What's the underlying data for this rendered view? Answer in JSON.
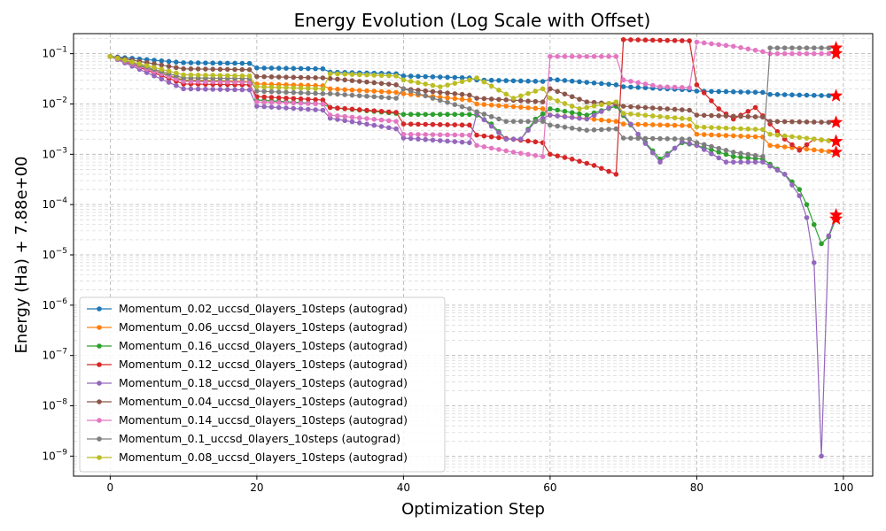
{
  "chart_data": {
    "type": "line",
    "title": "Energy Evolution (Log Scale with Offset)",
    "xlabel": "Optimization Step",
    "ylabel": "Energy (Ha) + 7.88e+00",
    "y_scale": "log",
    "xlim": [
      -5,
      104
    ],
    "ylim": [
      4e-10,
      0.25
    ],
    "grid": true,
    "legend_position": "lower-left",
    "x_ticks": [
      0,
      20,
      40,
      60,
      80,
      100
    ],
    "x_tick_labels": [
      "0",
      "20",
      "40",
      "60",
      "80",
      "100"
    ],
    "y_ticks": [
      1e-09,
      1e-08,
      1e-07,
      1e-06,
      1e-05,
      0.0001,
      0.001,
      0.01,
      0.1
    ],
    "y_tick_labels": [
      "10−9",
      "10−8",
      "10−7",
      "10−6",
      "10−5",
      "10−4",
      "10−3",
      "10−2",
      "10−1"
    ],
    "final_marker": "red-star",
    "final_marker_color": "#ff0000",
    "series": [
      {
        "name": "Momentum_0.02_uccsd_0layers_10steps (autograd)",
        "color": "#1f77b4",
        "points": [
          [
            0,
            0.088
          ],
          [
            10,
            0.066
          ],
          [
            19,
            0.064
          ],
          [
            20,
            0.052
          ],
          [
            29,
            0.05
          ],
          [
            30,
            0.043
          ],
          [
            39,
            0.04
          ],
          [
            40,
            0.036
          ],
          [
            49,
            0.033
          ],
          [
            50,
            0.03
          ],
          [
            59,
            0.028
          ],
          [
            60,
            0.031
          ],
          [
            69,
            0.024
          ],
          [
            70,
            0.022
          ],
          [
            79,
            0.019
          ],
          [
            80,
            0.018
          ],
          [
            89,
            0.017
          ],
          [
            90,
            0.0155
          ],
          [
            99,
            0.0145
          ]
        ],
        "final": 0.0145
      },
      {
        "name": "Momentum_0.06_uccsd_0layers_10steps (autograd)",
        "color": "#ff7f0e",
        "points": [
          [
            0,
            0.088
          ],
          [
            10,
            0.03
          ],
          [
            19,
            0.028
          ],
          [
            20,
            0.025
          ],
          [
            29,
            0.023
          ],
          [
            30,
            0.02
          ],
          [
            39,
            0.017
          ],
          [
            40,
            0.016
          ],
          [
            49,
            0.012
          ],
          [
            50,
            0.01
          ],
          [
            59,
            0.008
          ],
          [
            60,
            0.006
          ],
          [
            69,
            0.0045
          ],
          [
            70,
            0.004
          ],
          [
            79,
            0.0037
          ],
          [
            80,
            0.0025
          ],
          [
            89,
            0.0022
          ],
          [
            90,
            0.0015
          ],
          [
            99,
            0.0011
          ]
        ],
        "final": 0.0011
      },
      {
        "name": "Momentum_0.16_uccsd_0layers_10steps (autograd)",
        "color": "#2ca02c",
        "points": [
          [
            0,
            0.088
          ],
          [
            10,
            0.029
          ],
          [
            19,
            0.027
          ],
          [
            20,
            0.012
          ],
          [
            29,
            0.01
          ],
          [
            30,
            0.0085
          ],
          [
            39,
            0.0065
          ],
          [
            40,
            0.0062
          ],
          [
            49,
            0.0062
          ],
          [
            50,
            0.006
          ],
          [
            52,
            0.004
          ],
          [
            54,
            0.002
          ],
          [
            56,
            0.002
          ],
          [
            58,
            0.005
          ],
          [
            60,
            0.008
          ],
          [
            65,
            0.006
          ],
          [
            69,
            0.009
          ],
          [
            72,
            0.0025
          ],
          [
            75,
            0.0008
          ],
          [
            78,
            0.0017
          ],
          [
            80,
            0.0015
          ],
          [
            85,
            0.0009
          ],
          [
            89,
            0.0008
          ],
          [
            92,
            0.0004
          ],
          [
            94,
            0.0002
          ],
          [
            95,
            0.0001
          ],
          [
            96,
            4e-05
          ],
          [
            97,
            1.67e-05
          ],
          [
            98,
            2.3e-05
          ],
          [
            99,
            5.2e-05
          ]
        ],
        "final": 5.2e-05
      },
      {
        "name": "Momentum_0.12_uccsd_0layers_10steps (autograd)",
        "color": "#d62728",
        "points": [
          [
            0,
            0.088
          ],
          [
            10,
            0.025
          ],
          [
            19,
            0.024
          ],
          [
            20,
            0.014
          ],
          [
            29,
            0.012
          ],
          [
            30,
            0.0085
          ],
          [
            39,
            0.0068
          ],
          [
            40,
            0.004
          ],
          [
            49,
            0.0038
          ],
          [
            50,
            0.0024
          ],
          [
            59,
            0.0017
          ],
          [
            60,
            0.001
          ],
          [
            63,
            0.0008
          ],
          [
            66,
            0.0006
          ],
          [
            69,
            0.0004
          ],
          [
            70,
            0.19
          ],
          [
            79,
            0.18
          ],
          [
            80,
            0.024
          ],
          [
            83,
            0.008
          ],
          [
            85,
            0.005
          ],
          [
            88,
            0.0085
          ],
          [
            90,
            0.004
          ],
          [
            92,
            0.002
          ],
          [
            94,
            0.0012
          ],
          [
            96,
            0.002
          ],
          [
            99,
            0.0018
          ]
        ],
        "final": 0.0018
      },
      {
        "name": "Momentum_0.18_uccsd_0layers_10steps (autograd)",
        "color": "#9467bd",
        "points": [
          [
            0,
            0.088
          ],
          [
            10,
            0.02
          ],
          [
            19,
            0.019
          ],
          [
            20,
            0.009
          ],
          [
            29,
            0.0075
          ],
          [
            30,
            0.0052
          ],
          [
            39,
            0.0032
          ],
          [
            40,
            0.0021
          ],
          [
            49,
            0.0017
          ],
          [
            50,
            0.0065
          ],
          [
            54,
            0.002
          ],
          [
            56,
            0.002
          ],
          [
            58,
            0.0045
          ],
          [
            60,
            0.006
          ],
          [
            65,
            0.005
          ],
          [
            69,
            0.01
          ],
          [
            72,
            0.0025
          ],
          [
            75,
            0.0007
          ],
          [
            78,
            0.0018
          ],
          [
            80,
            0.0015
          ],
          [
            84,
            0.0007
          ],
          [
            89,
            0.0007
          ],
          [
            92,
            0.0004
          ],
          [
            94,
            0.00015
          ],
          [
            95,
            5.5e-05
          ],
          [
            96,
            7e-06
          ],
          [
            97,
            1e-09
          ],
          [
            98,
            2.4e-05
          ],
          [
            99,
            6.2e-05
          ]
        ],
        "final": 6.2e-05
      },
      {
        "name": "Momentum_0.04_uccsd_0layers_10steps (autograd)",
        "color": "#8c564b",
        "points": [
          [
            0,
            0.088
          ],
          [
            10,
            0.05
          ],
          [
            19,
            0.048
          ],
          [
            20,
            0.035
          ],
          [
            29,
            0.033
          ],
          [
            30,
            0.032
          ],
          [
            39,
            0.024
          ],
          [
            40,
            0.02
          ],
          [
            49,
            0.015
          ],
          [
            50,
            0.013
          ],
          [
            59,
            0.011
          ],
          [
            60,
            0.02
          ],
          [
            65,
            0.011
          ],
          [
            69,
            0.01
          ],
          [
            70,
            0.009
          ],
          [
            79,
            0.0075
          ],
          [
            80,
            0.006
          ],
          [
            89,
            0.0055
          ],
          [
            90,
            0.0045
          ],
          [
            99,
            0.0043
          ]
        ],
        "final": 0.0043
      },
      {
        "name": "Momentum_0.14_uccsd_0layers_10steps (autograd)",
        "color": "#e377c2",
        "points": [
          [
            0,
            0.088
          ],
          [
            10,
            0.028
          ],
          [
            19,
            0.027
          ],
          [
            20,
            0.011
          ],
          [
            29,
            0.01
          ],
          [
            30,
            0.006
          ],
          [
            39,
            0.0045
          ],
          [
            40,
            0.0025
          ],
          [
            49,
            0.0024
          ],
          [
            50,
            0.0015
          ],
          [
            55,
            0.0011
          ],
          [
            59,
            0.0009
          ],
          [
            60,
            0.088
          ],
          [
            69,
            0.088
          ],
          [
            70,
            0.03
          ],
          [
            75,
            0.022
          ],
          [
            79,
            0.021
          ],
          [
            80,
            0.17
          ],
          [
            85,
            0.14
          ],
          [
            89,
            0.11
          ],
          [
            90,
            0.1
          ],
          [
            99,
            0.1
          ]
        ],
        "final": 0.1
      },
      {
        "name": "Momentum_0.1_uccsd_0layers_10steps (autograd)",
        "color": "#7f7f7f",
        "points": [
          [
            0,
            0.088
          ],
          [
            10,
            0.033
          ],
          [
            19,
            0.032
          ],
          [
            20,
            0.018
          ],
          [
            29,
            0.016
          ],
          [
            30,
            0.016
          ],
          [
            39,
            0.013
          ],
          [
            40,
            0.02
          ],
          [
            44,
            0.013
          ],
          [
            49,
            0.008
          ],
          [
            50,
            0.007
          ],
          [
            54,
            0.0045
          ],
          [
            59,
            0.0045
          ],
          [
            60,
            0.0038
          ],
          [
            65,
            0.003
          ],
          [
            69,
            0.0032
          ],
          [
            70,
            0.0021
          ],
          [
            79,
            0.002
          ],
          [
            80,
            0.0017
          ],
          [
            85,
            0.0011
          ],
          [
            89,
            0.0009
          ],
          [
            90,
            0.13
          ],
          [
            99,
            0.13
          ]
        ],
        "final": 0.13
      },
      {
        "name": "Momentum_0.08_uccsd_0layers_10steps (autograd)",
        "color": "#bcbd22",
        "points": [
          [
            0,
            0.088
          ],
          [
            10,
            0.038
          ],
          [
            19,
            0.036
          ],
          [
            20,
            0.022
          ],
          [
            29,
            0.02
          ],
          [
            30,
            0.04
          ],
          [
            39,
            0.036
          ],
          [
            40,
            0.03
          ],
          [
            45,
            0.022
          ],
          [
            49,
            0.03
          ],
          [
            50,
            0.033
          ],
          [
            55,
            0.013
          ],
          [
            59,
            0.02
          ],
          [
            60,
            0.013
          ],
          [
            64,
            0.008
          ],
          [
            69,
            0.011
          ],
          [
            70,
            0.0065
          ],
          [
            79,
            0.005
          ],
          [
            80,
            0.0035
          ],
          [
            89,
            0.0031
          ],
          [
            90,
            0.0025
          ],
          [
            99,
            0.0018
          ]
        ],
        "final": 0.0018
      }
    ]
  }
}
